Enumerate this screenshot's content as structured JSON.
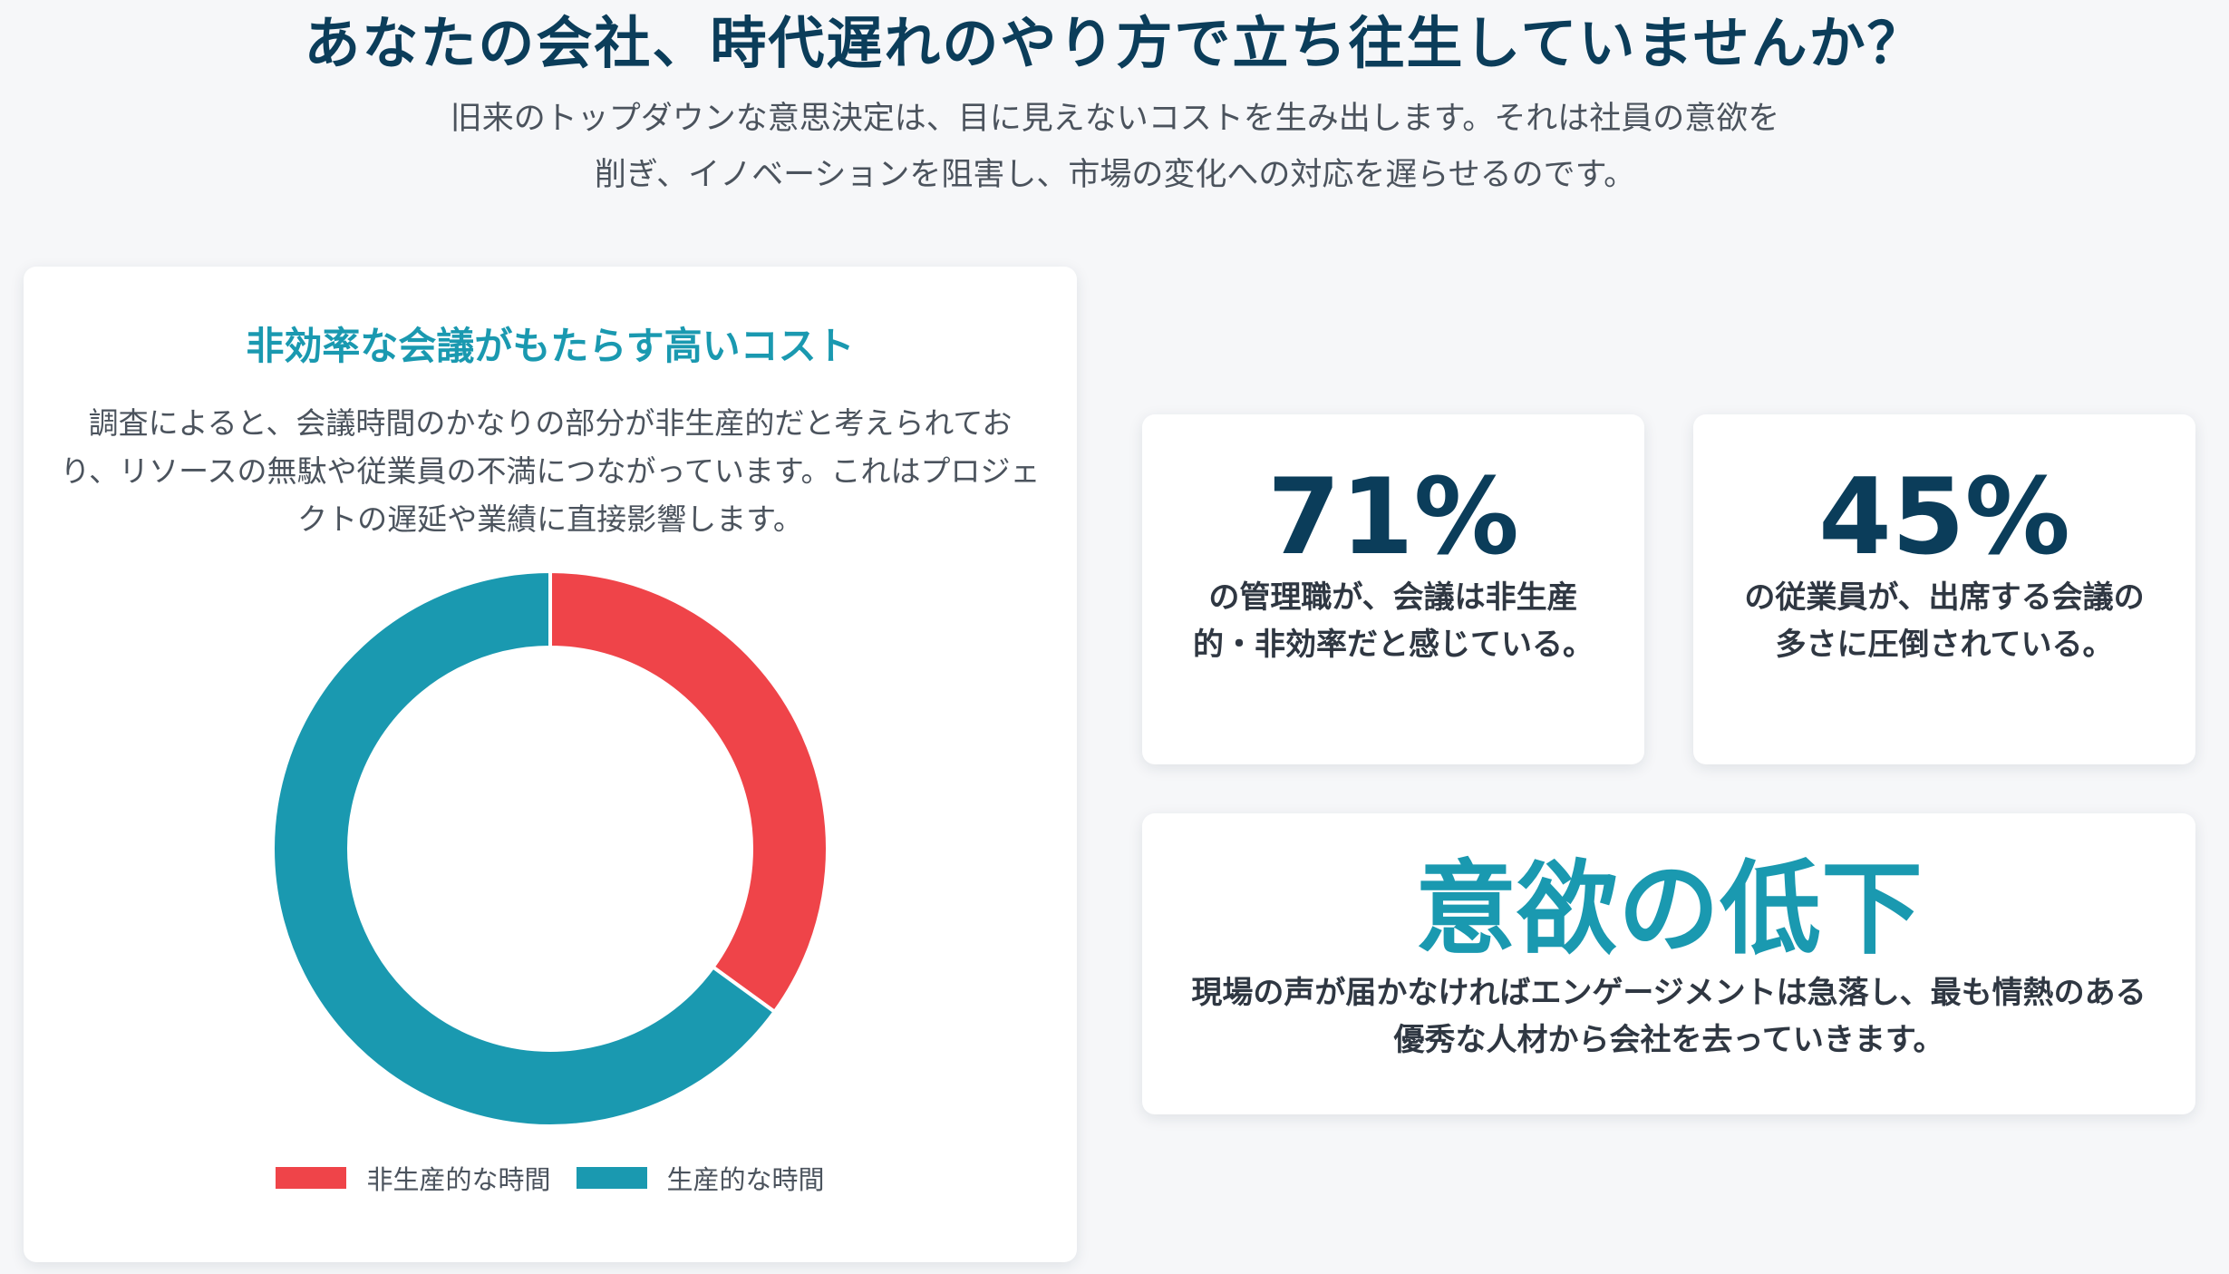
{
  "header": {
    "title": "あなたの会社、時代遅れのやり方で立ち往生していませんか？",
    "lead_line1": "旧来のトップダウンな意思決定は、目に見えないコストを生み出します。それは社員の意欲を",
    "lead_line2": "削ぎ、イノベーションを阻害し、市場の変化への対応を遅らせるのです。"
  },
  "chart_card": {
    "title": "非効率な会議がもたらす高いコスト",
    "description": "調査によると、会議時間のかなりの部分が非生産的だと考えられており、リソースの無駄や従業員の不満につながっています。これはプロジェクトの遅延や業績に直接影響します。"
  },
  "chart_data": {
    "type": "pie",
    "donut": true,
    "title": "",
    "categories": [
      "非生産的な時間",
      "生産的な時間"
    ],
    "values": [
      35,
      65
    ],
    "colors": [
      "#ef4449",
      "#1a99b0"
    ],
    "legend_position": "bottom"
  },
  "stats": {
    "manager": {
      "value": "71%",
      "text": "の管理職が、会議は非生産的・非効率だと感じている。"
    },
    "employee": {
      "value": "45%",
      "text": "の従業員が、出席する会議の多さに圧倒されている。"
    },
    "motivation": {
      "value": "意欲の低下",
      "text": "現場の声が届かなければエンゲージメントは急落し、最も情熱のある優秀な人材から会社を去っていきます。"
    }
  },
  "theme": {
    "navy": "#0b3d5a",
    "teal": "#1a99b0",
    "red": "#ef4449"
  }
}
